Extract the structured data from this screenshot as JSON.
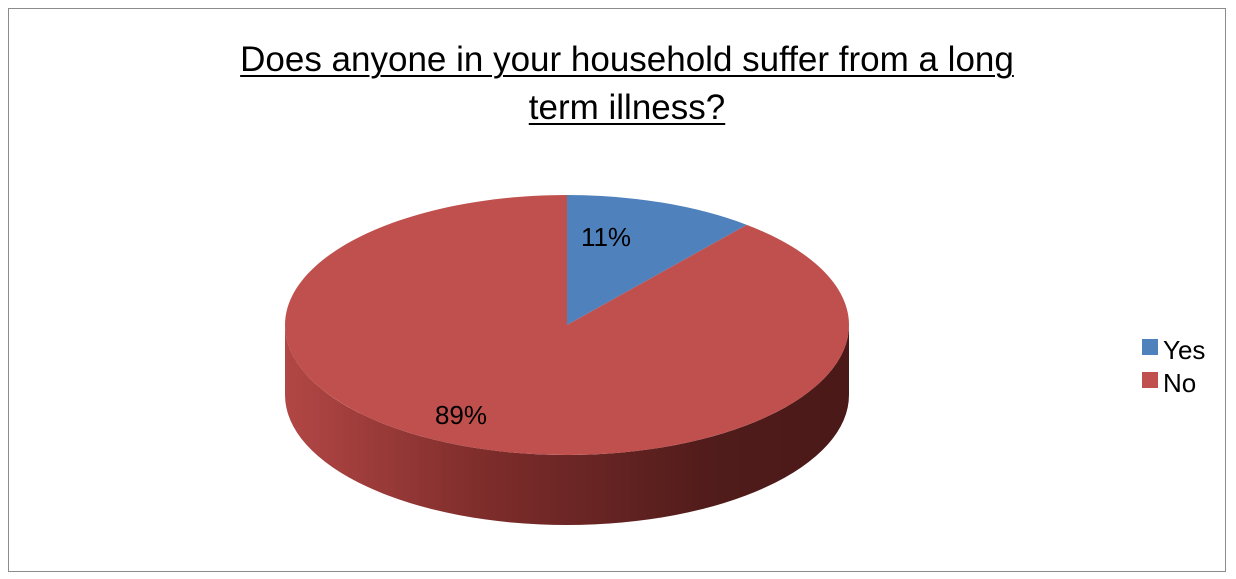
{
  "chart_data": {
    "type": "pie",
    "title_line1": "Does anyone in your household suffer from a long",
    "title_line2": "term illness?",
    "categories": [
      "Yes",
      "No"
    ],
    "values": [
      11,
      89
    ],
    "data_labels": [
      "11%",
      "89%"
    ],
    "colors": [
      "#4f81bd",
      "#c0504d"
    ],
    "legend_position": "right",
    "style": "3d"
  }
}
